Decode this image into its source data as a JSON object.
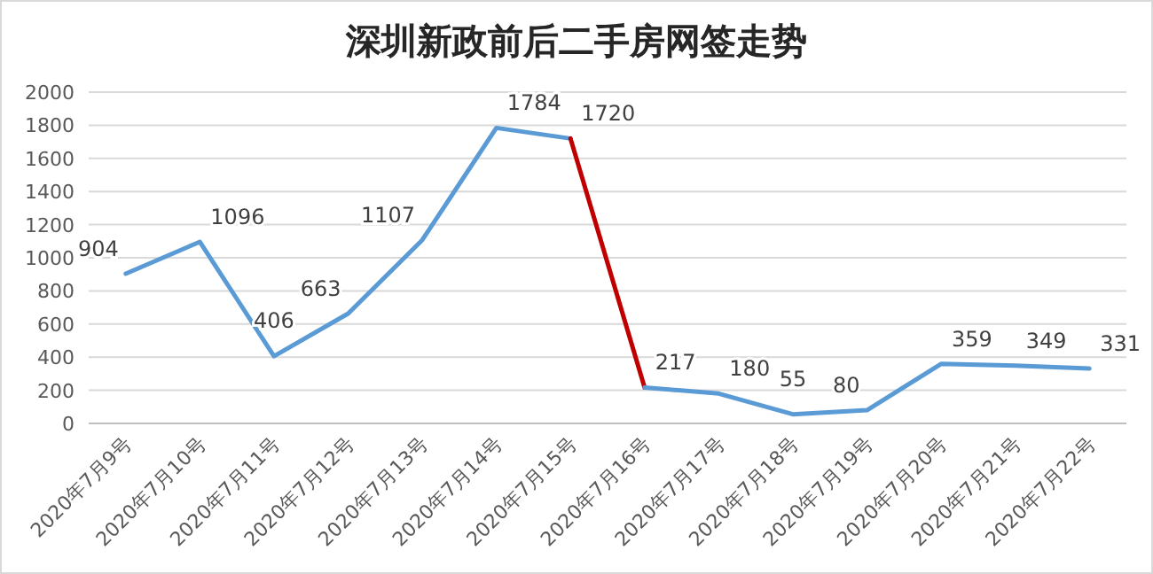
{
  "chart_data": {
    "type": "line",
    "title": "深圳新政前后二手房网签走势",
    "categories": [
      "2020年7月9号",
      "2020年7月10号",
      "2020年7月11号",
      "2020年7月12号",
      "2020年7月13号",
      "2020年7月14号",
      "2020年7月15号",
      "2020年7月16号",
      "2020年7月17号",
      "2020年7月18号",
      "2020年7月19号",
      "2020年7月20号",
      "2020年7月21号",
      "2020年7月22号"
    ],
    "series": [
      {
        "color": "#5b9bd5",
        "values": [
          904,
          1096,
          406,
          663,
          1107,
          1784,
          1720,
          null,
          null,
          null,
          null,
          null,
          null,
          null
        ],
        "value_labels": [
          "904",
          "1096",
          "406",
          "663",
          "1107",
          "1784",
          "1720",
          null,
          null,
          null,
          null,
          null,
          null,
          null
        ]
      },
      {
        "color": "#c00000",
        "values": [
          null,
          null,
          null,
          null,
          null,
          null,
          1720,
          217,
          null,
          null,
          null,
          null,
          null,
          null
        ]
      },
      {
        "color": "#5b9bd5",
        "values": [
          null,
          null,
          null,
          null,
          null,
          null,
          null,
          217,
          180,
          55,
          80,
          359,
          349,
          331
        ],
        "value_labels": [
          null,
          null,
          null,
          null,
          null,
          null,
          null,
          "217",
          "180",
          "55",
          "80",
          "359",
          "349",
          "331"
        ]
      }
    ],
    "ylim": [
      0,
      2000
    ],
    "yticks": [
      0,
      200,
      400,
      600,
      800,
      1000,
      1200,
      1400,
      1600,
      1800,
      2000
    ],
    "grid": "y"
  }
}
